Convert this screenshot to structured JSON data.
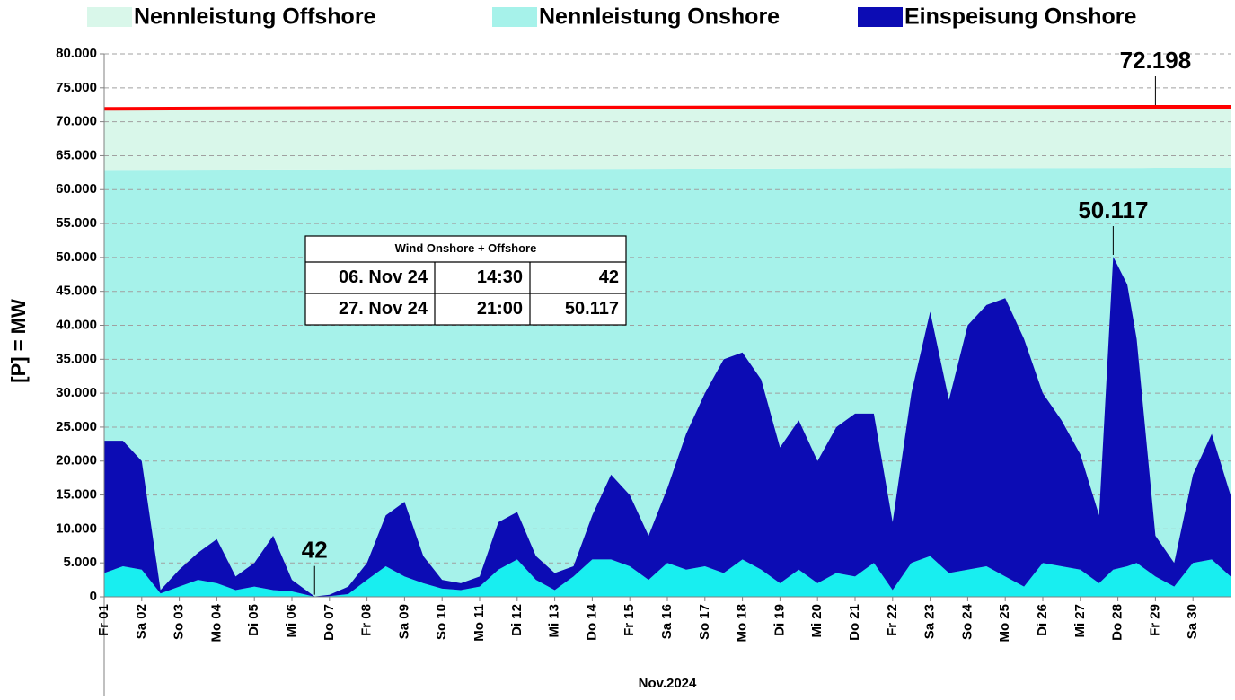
{
  "chart_data": {
    "type": "area",
    "y_label": "[P] = MW",
    "x_label": "Nov.2024",
    "xlim": [
      1,
      31
    ],
    "ylim": [
      0,
      80000
    ],
    "yticks": [
      0,
      {
        "value": 5000,
        "label": "5.000"
      },
      {
        "value": 10000,
        "label": "10.000"
      },
      {
        "value": 15000,
        "label": "15.000"
      },
      {
        "value": 20000,
        "label": "20.000"
      },
      {
        "value": 25000,
        "label": "25.000"
      },
      {
        "value": 30000,
        "label": "30.000"
      },
      {
        "value": 35000,
        "label": "35.000"
      },
      {
        "value": 40000,
        "label": "40.000"
      },
      {
        "value": 45000,
        "label": "45.000"
      },
      {
        "value": 50000,
        "label": "50.000"
      },
      {
        "value": 55000,
        "label": "55.000"
      },
      {
        "value": 60000,
        "label": "60.000"
      },
      {
        "value": 65000,
        "label": "65.000"
      },
      {
        "value": 70000,
        "label": "70.000"
      },
      {
        "value": 75000,
        "label": "75.000"
      },
      {
        "value": 80000,
        "label": "80.000"
      }
    ],
    "xticks": [
      {
        "value": 1,
        "label": "Fr 01"
      },
      {
        "value": 2,
        "label": "Sa 02"
      },
      {
        "value": 3,
        "label": "So 03"
      },
      {
        "value": 4,
        "label": "Mo 04"
      },
      {
        "value": 5,
        "label": "Di 05"
      },
      {
        "value": 6,
        "label": "Mi 06"
      },
      {
        "value": 7,
        "label": "Do 07"
      },
      {
        "value": 8,
        "label": "Fr 08"
      },
      {
        "value": 9,
        "label": "Sa 09"
      },
      {
        "value": 10,
        "label": "So 10"
      },
      {
        "value": 11,
        "label": "Mo 11"
      },
      {
        "value": 12,
        "label": "Di 12"
      },
      {
        "value": 13,
        "label": "Mi 13"
      },
      {
        "value": 14,
        "label": "Do 14"
      },
      {
        "value": 15,
        "label": "Fr 15"
      },
      {
        "value": 16,
        "label": "Sa 16"
      },
      {
        "value": 17,
        "label": "So 17"
      },
      {
        "value": 18,
        "label": "Mo 18"
      },
      {
        "value": 19,
        "label": "Di 19"
      },
      {
        "value": 20,
        "label": "Mi 20"
      },
      {
        "value": 21,
        "label": "Do 21"
      },
      {
        "value": 22,
        "label": "Fr 22"
      },
      {
        "value": 23,
        "label": "Sa 23"
      },
      {
        "value": 24,
        "label": "So 24"
      },
      {
        "value": 25,
        "label": "Mo 25"
      },
      {
        "value": 26,
        "label": "Di 26"
      },
      {
        "value": 27,
        "label": "Mi 27"
      },
      {
        "value": 28,
        "label": "Do 28"
      },
      {
        "value": 29,
        "label": "Fr 29"
      },
      {
        "value": 30,
        "label": "Sa 30"
      }
    ],
    "grid": true,
    "series": [
      {
        "name": "Nennleistung Onshore",
        "color": "#a6f2ea",
        "stack": "capacity",
        "x": [
          1,
          9,
          29,
          31
        ],
        "values": [
          62900,
          63000,
          63200,
          63200
        ]
      },
      {
        "name": "Nennleistung Offshore",
        "color": "#d9f7ea",
        "stack": "capacity",
        "line_color": "#ff0000",
        "x": [
          1,
          9,
          29,
          31
        ],
        "values": [
          9000,
          9050,
          8998,
          8998
        ]
      },
      {
        "color": "#18eef0",
        "stack": "feed",
        "x": [
          1,
          1.5,
          2,
          2.5,
          3,
          3.5,
          4,
          4.5,
          5,
          5.5,
          6,
          6.604,
          7,
          7.5,
          8,
          8.5,
          9,
          9.5,
          10,
          10.5,
          11,
          11.5,
          12,
          12.5,
          13,
          13.5,
          14,
          14.5,
          15,
          15.5,
          16,
          16.5,
          17,
          17.5,
          18,
          18.5,
          19,
          19.5,
          20,
          20.5,
          21,
          21.5,
          22,
          22.5,
          23,
          23.5,
          24,
          24.5,
          25,
          25.5,
          26,
          26.5,
          27,
          27.5,
          27.875,
          28.25,
          28.5,
          29,
          29.5,
          30,
          30.5,
          31
        ],
        "values": [
          3500,
          4500,
          4000,
          500,
          1500,
          2500,
          2000,
          1000,
          1500,
          1000,
          800,
          20,
          100,
          400,
          2500,
          4500,
          3000,
          2000,
          1200,
          1000,
          1500,
          4000,
          5500,
          2500,
          1000,
          3000,
          5500,
          5500,
          4500,
          2500,
          5000,
          4000,
          4500,
          3500,
          5500,
          4000,
          2000,
          4000,
          2000,
          3500,
          3000,
          5000,
          1000,
          5000,
          6000,
          3500,
          4000,
          4500,
          3000,
          1500,
          5000,
          4500,
          4000,
          2000,
          4000,
          4500,
          5000,
          3000,
          1500,
          5000,
          5500,
          3000
        ]
      },
      {
        "name": "Einspeisung Onshore",
        "color": "#0c0cb4",
        "stack": "feed",
        "x": [
          1,
          1.5,
          2,
          2.5,
          3,
          3.5,
          4,
          4.5,
          5,
          5.5,
          6,
          6.604,
          7,
          7.5,
          8,
          8.5,
          9,
          9.5,
          10,
          10.5,
          11,
          11.5,
          12,
          12.5,
          13,
          13.5,
          14,
          14.5,
          15,
          15.5,
          16,
          16.5,
          17,
          17.5,
          18,
          18.5,
          19,
          19.5,
          20,
          20.5,
          21,
          21.5,
          22,
          22.5,
          23,
          23.5,
          24,
          24.5,
          25,
          25.5,
          26,
          26.5,
          27,
          27.5,
          27.875,
          28.25,
          28.5,
          29,
          29.5,
          30,
          30.5,
          31
        ],
        "values": [
          19500,
          18500,
          16000,
          500,
          2500,
          4000,
          6500,
          2000,
          3500,
          8000,
          1700,
          22,
          200,
          1100,
          2500,
          7500,
          11000,
          4000,
          1300,
          1000,
          1500,
          7000,
          7000,
          3500,
          2500,
          1500,
          6500,
          12500,
          10500,
          6500,
          11000,
          20000,
          25500,
          31500,
          30500,
          28000,
          20000,
          22000,
          18000,
          21500,
          24000,
          22000,
          10000,
          25000,
          36000,
          25500,
          36000,
          38500,
          41000,
          36500,
          25000,
          21500,
          17000,
          10000,
          46117,
          41500,
          33000,
          6000,
          3500,
          13000,
          18500,
          12000
        ]
      }
    ],
    "annotations": [
      {
        "label": "72.198",
        "value": 72198,
        "x": 29
      },
      {
        "label": "50.117",
        "value": 50117,
        "x": 27.875
      },
      {
        "label": "42",
        "value": 42,
        "x": 6.604
      }
    ],
    "table": {
      "title": "Wind Onshore + Offshore",
      "rows": [
        [
          "06. Nov 24",
          "14:30",
          "42"
        ],
        [
          "27. Nov 24",
          "21:00",
          "50.117"
        ]
      ]
    }
  }
}
